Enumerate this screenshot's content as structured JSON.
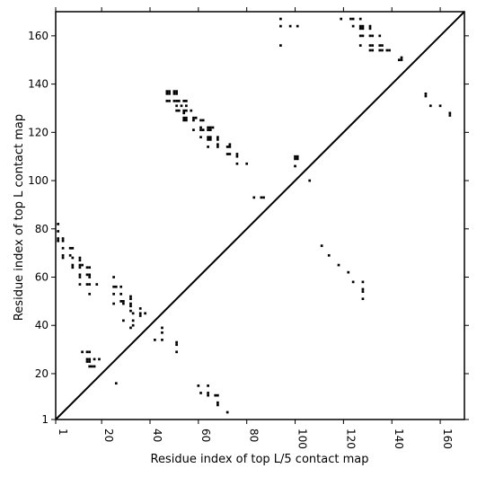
{
  "chart_data": {
    "type": "scatter",
    "title": "",
    "xlabel": "Residue index of top L/5 contact map",
    "ylabel": "Residue index of top L contact map",
    "xlim": [
      1,
      170
    ],
    "ylim": [
      1,
      170
    ],
    "xticks": [
      1,
      20,
      40,
      60,
      80,
      100,
      120,
      140,
      160
    ],
    "yticks": [
      1,
      20,
      40,
      60,
      80,
      100,
      120,
      140,
      160
    ],
    "diagonal": true,
    "legend": "none",
    "grid": false,
    "marker_color": "#000000",
    "upper_points": [
      [
        47,
        137
      ],
      [
        47,
        136
      ],
      [
        48,
        137
      ],
      [
        48,
        136
      ],
      [
        50,
        137
      ],
      [
        50,
        136
      ],
      [
        51,
        137
      ],
      [
        51,
        136
      ],
      [
        47,
        133
      ],
      [
        48,
        133
      ],
      [
        50,
        133
      ],
      [
        51,
        133
      ],
      [
        52,
        133
      ],
      [
        54,
        133
      ],
      [
        55,
        133
      ],
      [
        51,
        131
      ],
      [
        53,
        131
      ],
      [
        55,
        131
      ],
      [
        51,
        129
      ],
      [
        52,
        129
      ],
      [
        54,
        129
      ],
      [
        55,
        129
      ],
      [
        57,
        129
      ],
      [
        54,
        128
      ],
      [
        54,
        126
      ],
      [
        55,
        126
      ],
      [
        54,
        125
      ],
      [
        55,
        125
      ],
      [
        58,
        125
      ],
      [
        58,
        126
      ],
      [
        59,
        126
      ],
      [
        61,
        125
      ],
      [
        62,
        125
      ],
      [
        58,
        121
      ],
      [
        61,
        121
      ],
      [
        62,
        121
      ],
      [
        64,
        121
      ],
      [
        65,
        121
      ],
      [
        61,
        122
      ],
      [
        64,
        122
      ],
      [
        65,
        122
      ],
      [
        66,
        122
      ],
      [
        61,
        118
      ],
      [
        64,
        118
      ],
      [
        65,
        118
      ],
      [
        64,
        117
      ],
      [
        65,
        117
      ],
      [
        68,
        118
      ],
      [
        68,
        117
      ],
      [
        64,
        114
      ],
      [
        68,
        114
      ],
      [
        68,
        115
      ],
      [
        72,
        114
      ],
      [
        73,
        114
      ],
      [
        73,
        115
      ],
      [
        72,
        111
      ],
      [
        73,
        111
      ],
      [
        76,
        111
      ],
      [
        76,
        110
      ],
      [
        76,
        107
      ],
      [
        80,
        107
      ],
      [
        83,
        93
      ],
      [
        86,
        93
      ],
      [
        87,
        93
      ],
      [
        94,
        167
      ],
      [
        94,
        164
      ],
      [
        98,
        164
      ],
      [
        101,
        164
      ],
      [
        94,
        156
      ],
      [
        100,
        110
      ],
      [
        101,
        110
      ],
      [
        100,
        109
      ],
      [
        101,
        109
      ],
      [
        100,
        106
      ],
      [
        106,
        100
      ],
      [
        119,
        167
      ],
      [
        123,
        167
      ],
      [
        124,
        167
      ],
      [
        127,
        167
      ],
      [
        124,
        164
      ],
      [
        127,
        164
      ],
      [
        128,
        164
      ],
      [
        131,
        164
      ],
      [
        127,
        163
      ],
      [
        128,
        163
      ],
      [
        131,
        163
      ],
      [
        127,
        160
      ],
      [
        128,
        160
      ],
      [
        131,
        160
      ],
      [
        132,
        160
      ],
      [
        135,
        160
      ],
      [
        127,
        156
      ],
      [
        131,
        156
      ],
      [
        132,
        156
      ],
      [
        135,
        156
      ],
      [
        136,
        156
      ],
      [
        131,
        154
      ],
      [
        132,
        154
      ],
      [
        135,
        154
      ],
      [
        136,
        154
      ],
      [
        138,
        154
      ],
      [
        139,
        154
      ],
      [
        143,
        150
      ],
      [
        144,
        150
      ],
      [
        144,
        151
      ],
      [
        154,
        136
      ],
      [
        154,
        135
      ],
      [
        156,
        131
      ],
      [
        160,
        131
      ],
      [
        164,
        128
      ],
      [
        164,
        127
      ]
    ],
    "lower_points": [
      [
        2,
        82
      ],
      [
        2,
        79
      ],
      [
        2,
        76
      ],
      [
        2,
        75
      ],
      [
        4,
        76
      ],
      [
        4,
        75
      ],
      [
        4,
        72
      ],
      [
        4,
        69
      ],
      [
        4,
        68
      ],
      [
        7,
        72
      ],
      [
        8,
        72
      ],
      [
        7,
        69
      ],
      [
        8,
        68
      ],
      [
        8,
        65
      ],
      [
        8,
        64
      ],
      [
        11,
        68
      ],
      [
        11,
        67
      ],
      [
        11,
        65
      ],
      [
        12,
        65
      ],
      [
        11,
        64
      ],
      [
        11,
        61
      ],
      [
        11,
        60
      ],
      [
        11,
        57
      ],
      [
        14,
        64
      ],
      [
        15,
        64
      ],
      [
        14,
        61
      ],
      [
        15,
        61
      ],
      [
        15,
        60
      ],
      [
        14,
        57
      ],
      [
        15,
        57
      ],
      [
        15,
        53
      ],
      [
        18,
        57
      ],
      [
        25,
        60
      ],
      [
        25,
        56
      ],
      [
        26,
        56
      ],
      [
        25,
        53
      ],
      [
        28,
        56
      ],
      [
        25,
        49
      ],
      [
        28,
        53
      ],
      [
        28,
        50
      ],
      [
        29,
        50
      ],
      [
        29,
        49
      ],
      [
        32,
        52
      ],
      [
        32,
        51
      ],
      [
        32,
        49
      ],
      [
        32,
        48
      ],
      [
        32,
        46
      ],
      [
        33,
        45
      ],
      [
        33,
        42
      ],
      [
        36,
        47
      ],
      [
        36,
        45
      ],
      [
        36,
        44
      ],
      [
        32,
        39
      ],
      [
        33,
        40
      ],
      [
        29,
        42
      ],
      [
        38,
        45
      ],
      [
        42,
        34
      ],
      [
        45,
        39
      ],
      [
        45,
        37
      ],
      [
        45,
        34
      ],
      [
        51,
        33
      ],
      [
        51,
        32
      ],
      [
        51,
        29
      ],
      [
        12,
        29
      ],
      [
        14,
        29
      ],
      [
        15,
        29
      ],
      [
        14,
        26
      ],
      [
        15,
        26
      ],
      [
        14,
        25
      ],
      [
        15,
        25
      ],
      [
        17,
        26
      ],
      [
        19,
        26
      ],
      [
        15,
        23
      ],
      [
        16,
        23
      ],
      [
        17,
        23
      ],
      [
        26,
        16
      ],
      [
        60,
        15
      ],
      [
        64,
        15
      ],
      [
        61,
        12
      ],
      [
        64,
        12
      ],
      [
        64,
        11
      ],
      [
        67,
        11
      ],
      [
        68,
        11
      ],
      [
        68,
        8
      ],
      [
        68,
        7
      ],
      [
        72,
        4
      ],
      [
        111,
        73
      ],
      [
        114,
        69
      ],
      [
        118,
        65
      ],
      [
        122,
        62
      ],
      [
        124,
        58
      ],
      [
        128,
        58
      ],
      [
        128,
        55
      ],
      [
        128,
        54
      ],
      [
        128,
        51
      ]
    ]
  }
}
